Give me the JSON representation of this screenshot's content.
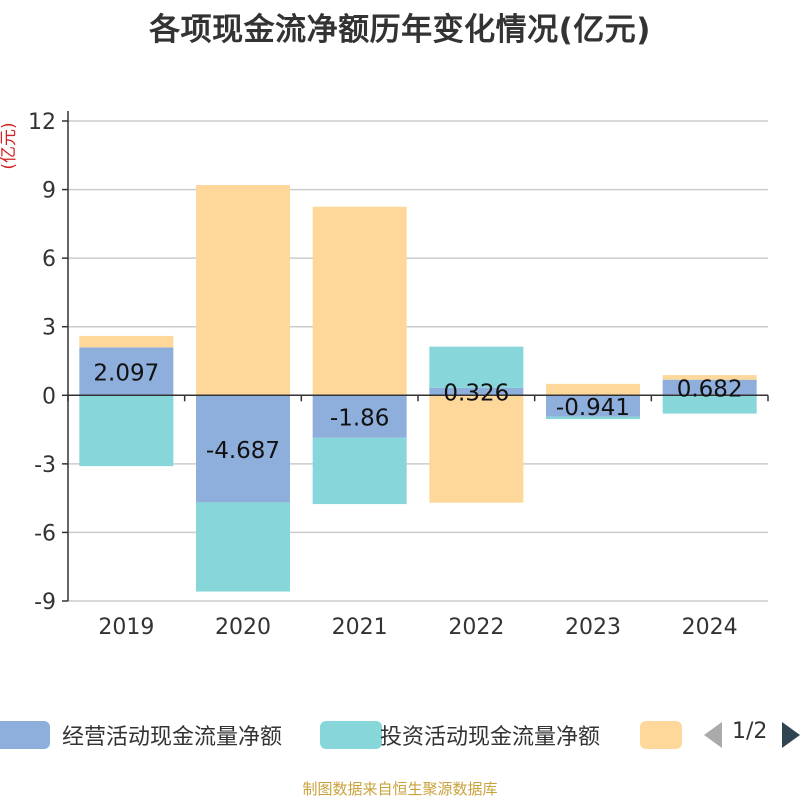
{
  "title": "各项现金流净额历年变化情况(亿元)",
  "source": "制图数据来自恒生聚源数据库",
  "legend": {
    "pager": "1/2"
  },
  "chart_data": {
    "type": "bar",
    "stacked": true,
    "title": "各项现金流净额历年变化情况(亿元)",
    "ylabel": "(亿元)",
    "xlabel": "",
    "ylim": [
      -9,
      12
    ],
    "yticks": [
      12,
      9,
      6,
      3,
      0,
      -3,
      -6,
      -9
    ],
    "categories": [
      "2019",
      "2020",
      "2021",
      "2022",
      "2023",
      "2024"
    ],
    "series": [
      {
        "name": "经营活动现金流量净额",
        "color": "#8eaedb",
        "values": [
          2.097,
          -4.687,
          -1.86,
          0.326,
          -0.941,
          0.682
        ],
        "labels": [
          "2.097",
          "-4.687",
          "-1.86",
          "0.326",
          "-0.941",
          "0.682"
        ]
      },
      {
        "name": "投资活动现金流量净额",
        "color": "#87d6d9",
        "values": [
          -3.1,
          -3.9,
          -2.9,
          1.8,
          -0.1,
          -0.8
        ]
      },
      {
        "name": "",
        "color": "#fdd89a",
        "values": [
          0.5,
          9.2,
          8.25,
          -4.7,
          0.5,
          0.2
        ]
      }
    ]
  }
}
